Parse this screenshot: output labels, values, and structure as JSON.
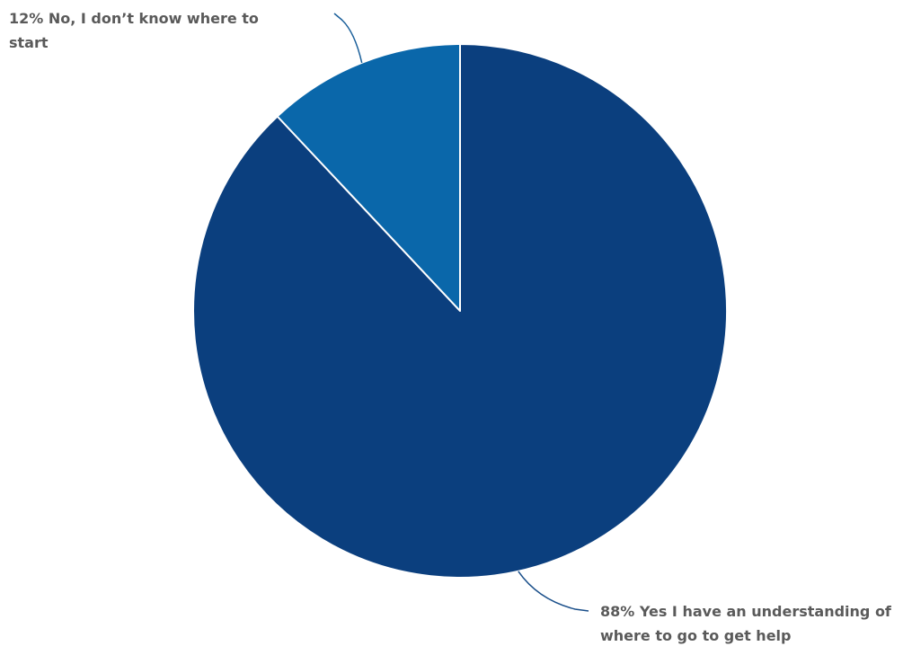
{
  "chart_data": {
    "type": "pie",
    "categories": [
      "Yes I have an understanding of where to go to get help",
      "No, I don’t know where to start"
    ],
    "values": [
      88,
      12
    ],
    "colors": [
      "#0b3f7e",
      "#0a67aa"
    ],
    "start_angle": "12 o'clock",
    "direction": "clockwise",
    "labels": [
      {
        "lines": [
          "88% Yes I have an understanding of",
          "where to go to get help"
        ]
      },
      {
        "lines": [
          "12% No, I don’t know where to",
          "start"
        ]
      }
    ]
  }
}
